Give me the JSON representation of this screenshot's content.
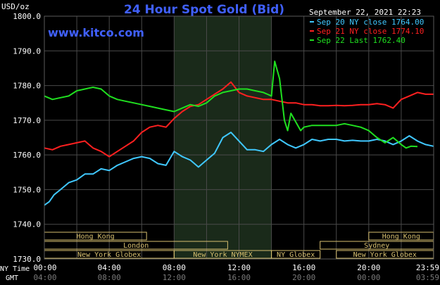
{
  "header": {
    "title": "24 Hour Spot Gold (Bid)",
    "unit": "USD/oz",
    "timestamp": "September 22, 2021 22:23",
    "watermark": "www.kitco.com"
  },
  "legend": [
    {
      "label": "Sep 20 NY close 1764.00",
      "color": "#40c8ff"
    },
    {
      "label": "Sep 21 NY close 1774.10",
      "color": "#ff2020"
    },
    {
      "label": "Sep 22 Last 1762.40",
      "color": "#20e020"
    }
  ],
  "axis": {
    "row1_label": "NY Time",
    "row2_label": "GMT",
    "ny_ticks": [
      "00:00",
      "04:00",
      "08:00",
      "12:00",
      "16:00",
      "20:00",
      "23:59"
    ],
    "gmt_ticks": [
      "04:00",
      "08:00",
      "12:00",
      "16:00",
      "20:00",
      "00:00",
      "03:59"
    ]
  },
  "colors": {
    "background": "#000000",
    "grid": "#4a4a4a",
    "shade": "#1a2a1a",
    "title": "#4060ff",
    "text": "#ffffff",
    "market_box": "#d8c070"
  },
  "markets": [
    {
      "name": "Hong Kong",
      "row": 0,
      "start_hour": 0.0,
      "end_hour": 6.3
    },
    {
      "name": "Hong Kong",
      "row": 0,
      "start_hour": 20.0,
      "end_hour": 23.99
    },
    {
      "name": "London",
      "row": 1,
      "start_hour": 0.0,
      "end_hour": 11.3
    },
    {
      "name": "Sydney",
      "row": 1,
      "start_hour": 17.0,
      "end_hour": 23.99
    },
    {
      "name": "New York Globex",
      "row": 2,
      "start_hour": 0.0,
      "end_hour": 8.0
    },
    {
      "name": "New York NYMEX",
      "row": 2,
      "start_hour": 8.0,
      "end_hour": 14.0
    },
    {
      "name": "NY Globex",
      "row": 2,
      "start_hour": 14.0,
      "end_hour": 17.0
    },
    {
      "name": "New York Globex",
      "row": 2,
      "start_hour": 18.0,
      "end_hour": 23.99
    }
  ],
  "chart_data": {
    "type": "line",
    "title": "24 Hour Spot Gold (Bid)",
    "ylabel": "USD/oz",
    "xlabel": "NY Time",
    "xlim": [
      0,
      24
    ],
    "ylim": [
      1730.0,
      1800.0
    ],
    "yticks": [
      "1730.0",
      "1740.0",
      "1750.0",
      "1760.0",
      "1770.0",
      "1780.0",
      "1790.0",
      "1800.0"
    ],
    "grid": true,
    "legend_position": "top-right",
    "shaded_session": [
      8.0,
      14.0
    ],
    "series": [
      {
        "name": "Sep 20 NY close 1764.00",
        "color": "#40c8ff",
        "x": [
          0,
          0.3,
          0.6,
          1,
          1.5,
          2,
          2.5,
          3,
          3.5,
          4,
          4.5,
          5,
          5.5,
          6,
          6.5,
          7,
          7.5,
          8,
          8.5,
          9,
          9.5,
          10,
          10.5,
          11,
          11.5,
          12,
          12.5,
          13,
          13.5,
          14,
          14.5,
          15,
          15.5,
          16,
          16.5,
          17,
          17.5,
          18,
          18.5,
          19,
          19.5,
          20,
          20.5,
          21,
          21.5,
          22,
          22.5,
          23,
          23.5,
          23.99
        ],
        "values": [
          1745.5,
          1746.5,
          1748.5,
          1750.0,
          1752.0,
          1752.8,
          1754.5,
          1754.5,
          1756.0,
          1755.5,
          1757.0,
          1758.0,
          1759.0,
          1759.5,
          1759.0,
          1757.5,
          1757.0,
          1761.0,
          1759.5,
          1758.5,
          1756.5,
          1758.5,
          1760.5,
          1765.0,
          1766.5,
          1764.0,
          1761.5,
          1761.5,
          1761.0,
          1763.0,
          1764.5,
          1763.0,
          1762.0,
          1763.0,
          1764.5,
          1764.0,
          1764.5,
          1764.5,
          1764.0,
          1764.2,
          1764.0,
          1764.0,
          1764.5,
          1764.0,
          1763.0,
          1764.0,
          1765.5,
          1764.0,
          1763.0,
          1762.5
        ]
      },
      {
        "name": "Sep 21 NY close 1774.10",
        "color": "#ff2020",
        "x": [
          0,
          0.5,
          1,
          1.5,
          2,
          2.5,
          3,
          3.5,
          4,
          4.5,
          5,
          5.5,
          6,
          6.5,
          7,
          7.5,
          8,
          8.5,
          9,
          9.5,
          10,
          10.5,
          11,
          11.5,
          12,
          12.5,
          13,
          13.5,
          14,
          14.5,
          15,
          15.5,
          16,
          16.5,
          17,
          17.5,
          18,
          18.5,
          19,
          19.5,
          20,
          20.5,
          21,
          21.5,
          22,
          22.5,
          23,
          23.5,
          23.99
        ],
        "values": [
          1762.0,
          1761.5,
          1762.5,
          1763.0,
          1763.5,
          1764.0,
          1762.0,
          1761.0,
          1759.5,
          1761.0,
          1762.5,
          1764.0,
          1766.5,
          1768.0,
          1768.5,
          1768.0,
          1770.5,
          1772.5,
          1774.0,
          1774.5,
          1776.0,
          1777.5,
          1779.0,
          1781.0,
          1778.0,
          1777.0,
          1776.5,
          1776.0,
          1776.0,
          1775.5,
          1775.0,
          1775.0,
          1774.5,
          1774.5,
          1774.2,
          1774.2,
          1774.3,
          1774.2,
          1774.3,
          1774.5,
          1774.5,
          1774.8,
          1774.5,
          1773.5,
          1776.0,
          1777.0,
          1778.0,
          1777.5,
          1777.5
        ]
      },
      {
        "name": "Sep 22 Last 1762.40",
        "color": "#20e020",
        "x": [
          0,
          0.5,
          1,
          1.5,
          2,
          2.5,
          3,
          3.5,
          4,
          4.5,
          5,
          5.5,
          6,
          6.5,
          7,
          7.5,
          8,
          8.5,
          9,
          9.5,
          10,
          10.5,
          11,
          11.5,
          12,
          12.5,
          13,
          13.5,
          14,
          14.2,
          14.5,
          14.8,
          15,
          15.2,
          15.5,
          15.8,
          16,
          16.5,
          17,
          17.5,
          18,
          18.5,
          19,
          19.5,
          20,
          20.5,
          21,
          21.5,
          22,
          22.3,
          22.6,
          23
        ],
        "values": [
          1777.0,
          1776.0,
          1776.5,
          1777.0,
          1778.5,
          1779.0,
          1779.5,
          1779.0,
          1777.0,
          1776.0,
          1775.5,
          1775.0,
          1774.5,
          1774.0,
          1773.5,
          1773.0,
          1772.5,
          1773.5,
          1774.5,
          1774.0,
          1775.0,
          1777.0,
          1778.0,
          1778.5,
          1779.0,
          1779.0,
          1778.5,
          1778.0,
          1777.0,
          1787.0,
          1782.0,
          1770.0,
          1767.0,
          1772.0,
          1769.5,
          1767.0,
          1768.0,
          1768.5,
          1768.5,
          1768.5,
          1768.5,
          1769.0,
          1768.5,
          1768.0,
          1767.0,
          1765.0,
          1763.5,
          1765.0,
          1763.0,
          1762.0,
          1762.5,
          1762.4
        ]
      }
    ]
  }
}
